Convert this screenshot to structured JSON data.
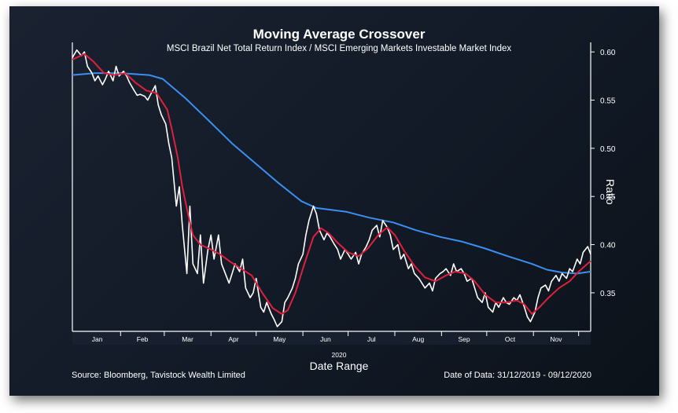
{
  "chart_data": {
    "type": "line",
    "title": "Moving Average Crossover",
    "subtitle": "MSCI Brazil Net Total Return Index / MSCI Emerging Markets Investable Market Index",
    "xlabel": "Date Range",
    "x_group_label": "2020",
    "ylabel": "Ratio",
    "ylim": [
      0.31,
      0.605
    ],
    "y_ticks": [
      0.6,
      0.55,
      0.5,
      0.45,
      0.4,
      0.35
    ],
    "y_tick_labels": [
      "0.60",
      "0.55",
      "0.50",
      "0.45",
      "0.40",
      "0.35"
    ],
    "x_months": [
      "Jan",
      "Feb",
      "Mar",
      "Apr",
      "May",
      "Jun",
      "Jul",
      "Aug",
      "Sep",
      "Oct",
      "Nov"
    ],
    "date_range": [
      "2019-12-31",
      "2020-12-09"
    ],
    "grid": false,
    "series": [
      {
        "color": "#ffffff",
        "points": [
          [
            "2019-12-31",
            0.594
          ],
          [
            "2020-01-03",
            0.602
          ],
          [
            "2020-01-06",
            0.596
          ],
          [
            "2020-01-08",
            0.6
          ],
          [
            "2020-01-10",
            0.585
          ],
          [
            "2020-01-13",
            0.578
          ],
          [
            "2020-01-15",
            0.57
          ],
          [
            "2020-01-17",
            0.575
          ],
          [
            "2020-01-20",
            0.566
          ],
          [
            "2020-01-22",
            0.572
          ],
          [
            "2020-01-24",
            0.58
          ],
          [
            "2020-01-27",
            0.57
          ],
          [
            "2020-01-29",
            0.585
          ],
          [
            "2020-01-31",
            0.575
          ],
          [
            "2020-02-03",
            0.58
          ],
          [
            "2020-02-05",
            0.575
          ],
          [
            "2020-02-07",
            0.568
          ],
          [
            "2020-02-10",
            0.56
          ],
          [
            "2020-02-12",
            0.555
          ],
          [
            "2020-02-14",
            0.556
          ],
          [
            "2020-02-17",
            0.554
          ],
          [
            "2020-02-19",
            0.55
          ],
          [
            "2020-02-21",
            0.556
          ],
          [
            "2020-02-24",
            0.565
          ],
          [
            "2020-02-26",
            0.545
          ],
          [
            "2020-02-28",
            0.535
          ],
          [
            "2020-03-02",
            0.525
          ],
          [
            "2020-03-04",
            0.505
          ],
          [
            "2020-03-06",
            0.49
          ],
          [
            "2020-03-09",
            0.44
          ],
          [
            "2020-03-11",
            0.46
          ],
          [
            "2020-03-13",
            0.42
          ],
          [
            "2020-03-16",
            0.37
          ],
          [
            "2020-03-18",
            0.44
          ],
          [
            "2020-03-20",
            0.38
          ],
          [
            "2020-03-23",
            0.37
          ],
          [
            "2020-03-25",
            0.41
          ],
          [
            "2020-03-27",
            0.36
          ],
          [
            "2020-03-30",
            0.395
          ],
          [
            "2020-04-01",
            0.41
          ],
          [
            "2020-04-03",
            0.385
          ],
          [
            "2020-04-06",
            0.41
          ],
          [
            "2020-04-08",
            0.38
          ],
          [
            "2020-04-13",
            0.36
          ],
          [
            "2020-04-15",
            0.37
          ],
          [
            "2020-04-17",
            0.38
          ],
          [
            "2020-04-20",
            0.372
          ],
          [
            "2020-04-22",
            0.385
          ],
          [
            "2020-04-24",
            0.355
          ],
          [
            "2020-04-27",
            0.345
          ],
          [
            "2020-04-29",
            0.35
          ],
          [
            "2020-05-01",
            0.365
          ],
          [
            "2020-05-04",
            0.335
          ],
          [
            "2020-05-06",
            0.33
          ],
          [
            "2020-05-08",
            0.34
          ],
          [
            "2020-05-11",
            0.328
          ],
          [
            "2020-05-13",
            0.322
          ],
          [
            "2020-05-15",
            0.315
          ],
          [
            "2020-05-18",
            0.32
          ],
          [
            "2020-05-20",
            0.34
          ],
          [
            "2020-05-22",
            0.345
          ],
          [
            "2020-05-25",
            0.355
          ],
          [
            "2020-05-27",
            0.365
          ],
          [
            "2020-05-29",
            0.38
          ],
          [
            "2020-06-01",
            0.39
          ],
          [
            "2020-06-03",
            0.41
          ],
          [
            "2020-06-05",
            0.425
          ],
          [
            "2020-06-08",
            0.44
          ],
          [
            "2020-06-10",
            0.432
          ],
          [
            "2020-06-12",
            0.415
          ],
          [
            "2020-06-15",
            0.405
          ],
          [
            "2020-06-17",
            0.412
          ],
          [
            "2020-06-19",
            0.408
          ],
          [
            "2020-06-22",
            0.4
          ],
          [
            "2020-06-24",
            0.395
          ],
          [
            "2020-06-26",
            0.385
          ],
          [
            "2020-06-29",
            0.395
          ],
          [
            "2020-07-01",
            0.39
          ],
          [
            "2020-07-03",
            0.385
          ],
          [
            "2020-07-06",
            0.392
          ],
          [
            "2020-07-08",
            0.38
          ],
          [
            "2020-07-10",
            0.39
          ],
          [
            "2020-07-13",
            0.398
          ],
          [
            "2020-07-15",
            0.405
          ],
          [
            "2020-07-17",
            0.415
          ],
          [
            "2020-07-20",
            0.42
          ],
          [
            "2020-07-22",
            0.408
          ],
          [
            "2020-07-24",
            0.425
          ],
          [
            "2020-07-27",
            0.418
          ],
          [
            "2020-07-29",
            0.41
          ],
          [
            "2020-07-31",
            0.395
          ],
          [
            "2020-08-03",
            0.4
          ],
          [
            "2020-08-05",
            0.385
          ],
          [
            "2020-08-07",
            0.39
          ],
          [
            "2020-08-10",
            0.375
          ],
          [
            "2020-08-12",
            0.38
          ],
          [
            "2020-08-14",
            0.37
          ],
          [
            "2020-08-17",
            0.365
          ],
          [
            "2020-08-19",
            0.36
          ],
          [
            "2020-08-21",
            0.355
          ],
          [
            "2020-08-24",
            0.36
          ],
          [
            "2020-08-26",
            0.352
          ],
          [
            "2020-08-28",
            0.365
          ],
          [
            "2020-08-31",
            0.37
          ],
          [
            "2020-09-02",
            0.372
          ],
          [
            "2020-09-04",
            0.375
          ],
          [
            "2020-09-07",
            0.368
          ],
          [
            "2020-09-09",
            0.38
          ],
          [
            "2020-09-11",
            0.372
          ],
          [
            "2020-09-14",
            0.375
          ],
          [
            "2020-09-16",
            0.37
          ],
          [
            "2020-09-18",
            0.362
          ],
          [
            "2020-09-21",
            0.365
          ],
          [
            "2020-09-23",
            0.355
          ],
          [
            "2020-09-25",
            0.345
          ],
          [
            "2020-09-28",
            0.34
          ],
          [
            "2020-09-30",
            0.35
          ],
          [
            "2020-10-02",
            0.335
          ],
          [
            "2020-10-05",
            0.33
          ],
          [
            "2020-10-07",
            0.34
          ],
          [
            "2020-10-09",
            0.335
          ],
          [
            "2020-10-12",
            0.345
          ],
          [
            "2020-10-14",
            0.34
          ],
          [
            "2020-10-16",
            0.338
          ],
          [
            "2020-10-19",
            0.345
          ],
          [
            "2020-10-21",
            0.342
          ],
          [
            "2020-10-23",
            0.348
          ],
          [
            "2020-10-26",
            0.335
          ],
          [
            "2020-10-28",
            0.325
          ],
          [
            "2020-10-30",
            0.32
          ],
          [
            "2020-11-02",
            0.33
          ],
          [
            "2020-11-04",
            0.345
          ],
          [
            "2020-11-06",
            0.355
          ],
          [
            "2020-11-09",
            0.358
          ],
          [
            "2020-11-11",
            0.352
          ],
          [
            "2020-11-13",
            0.362
          ],
          [
            "2020-11-16",
            0.368
          ],
          [
            "2020-11-18",
            0.362
          ],
          [
            "2020-11-20",
            0.37
          ],
          [
            "2020-11-23",
            0.365
          ],
          [
            "2020-11-25",
            0.375
          ],
          [
            "2020-11-27",
            0.372
          ],
          [
            "2020-11-30",
            0.385
          ],
          [
            "2020-12-02",
            0.38
          ],
          [
            "2020-12-04",
            0.392
          ],
          [
            "2020-12-07",
            0.398
          ],
          [
            "2020-12-09",
            0.39
          ]
        ]
      },
      {
        "color": "#e0203a",
        "points": [
          [
            "2019-12-31",
            0.592
          ],
          [
            "2020-01-08",
            0.598
          ],
          [
            "2020-01-14",
            0.59
          ],
          [
            "2020-01-21",
            0.578
          ],
          [
            "2020-01-28",
            0.576
          ],
          [
            "2020-02-04",
            0.578
          ],
          [
            "2020-02-11",
            0.568
          ],
          [
            "2020-02-18",
            0.56
          ],
          [
            "2020-02-25",
            0.557
          ],
          [
            "2020-03-03",
            0.54
          ],
          [
            "2020-03-06",
            0.52
          ],
          [
            "2020-03-10",
            0.49
          ],
          [
            "2020-03-13",
            0.46
          ],
          [
            "2020-03-17",
            0.43
          ],
          [
            "2020-03-20",
            0.41
          ],
          [
            "2020-03-25",
            0.4
          ],
          [
            "2020-04-01",
            0.395
          ],
          [
            "2020-04-07",
            0.39
          ],
          [
            "2020-04-14",
            0.382
          ],
          [
            "2020-04-21",
            0.375
          ],
          [
            "2020-04-28",
            0.368
          ],
          [
            "2020-05-05",
            0.35
          ],
          [
            "2020-05-12",
            0.334
          ],
          [
            "2020-05-18",
            0.328
          ],
          [
            "2020-05-22",
            0.332
          ],
          [
            "2020-05-27",
            0.35
          ],
          [
            "2020-06-02",
            0.38
          ],
          [
            "2020-06-08",
            0.408
          ],
          [
            "2020-06-13",
            0.417
          ],
          [
            "2020-06-18",
            0.412
          ],
          [
            "2020-06-24",
            0.402
          ],
          [
            "2020-07-01",
            0.392
          ],
          [
            "2020-07-08",
            0.388
          ],
          [
            "2020-07-14",
            0.396
          ],
          [
            "2020-07-21",
            0.41
          ],
          [
            "2020-07-27",
            0.418
          ],
          [
            "2020-08-01",
            0.41
          ],
          [
            "2020-08-07",
            0.394
          ],
          [
            "2020-08-14",
            0.378
          ],
          [
            "2020-08-21",
            0.366
          ],
          [
            "2020-08-28",
            0.362
          ],
          [
            "2020-09-04",
            0.368
          ],
          [
            "2020-09-10",
            0.372
          ],
          [
            "2020-09-17",
            0.37
          ],
          [
            "2020-09-23",
            0.362
          ],
          [
            "2020-09-30",
            0.348
          ],
          [
            "2020-10-07",
            0.34
          ],
          [
            "2020-10-14",
            0.34
          ],
          [
            "2020-10-21",
            0.342
          ],
          [
            "2020-10-26",
            0.338
          ],
          [
            "2020-10-31",
            0.328
          ],
          [
            "2020-11-05",
            0.335
          ],
          [
            "2020-11-11",
            0.345
          ],
          [
            "2020-11-18",
            0.355
          ],
          [
            "2020-11-25",
            0.362
          ],
          [
            "2020-12-01",
            0.372
          ],
          [
            "2020-12-09",
            0.383
          ]
        ]
      },
      {
        "color": "#3a8ff0",
        "points": [
          [
            "2019-12-31",
            0.576
          ],
          [
            "2020-01-15",
            0.578
          ],
          [
            "2020-02-01",
            0.578
          ],
          [
            "2020-02-20",
            0.576
          ],
          [
            "2020-02-29",
            0.572
          ],
          [
            "2020-03-15",
            0.552
          ],
          [
            "2020-03-31",
            0.528
          ],
          [
            "2020-04-15",
            0.505
          ],
          [
            "2020-04-30",
            0.485
          ],
          [
            "2020-05-15",
            0.465
          ],
          [
            "2020-05-31",
            0.445
          ],
          [
            "2020-06-10",
            0.438
          ],
          [
            "2020-06-30",
            0.434
          ],
          [
            "2020-07-15",
            0.428
          ],
          [
            "2020-07-31",
            0.423
          ],
          [
            "2020-08-15",
            0.415
          ],
          [
            "2020-08-31",
            0.408
          ],
          [
            "2020-09-15",
            0.403
          ],
          [
            "2020-09-30",
            0.396
          ],
          [
            "2020-10-15",
            0.388
          ],
          [
            "2020-10-31",
            0.38
          ],
          [
            "2020-11-10",
            0.374
          ],
          [
            "2020-11-20",
            0.371
          ],
          [
            "2020-11-30",
            0.37
          ],
          [
            "2020-12-09",
            0.372
          ]
        ]
      }
    ]
  },
  "footer": {
    "source": "Source: Bloomberg, Tavistock Wealth Limited",
    "date_of_data": "Date of Data: 31/12/2019 - 09/12/2020"
  }
}
